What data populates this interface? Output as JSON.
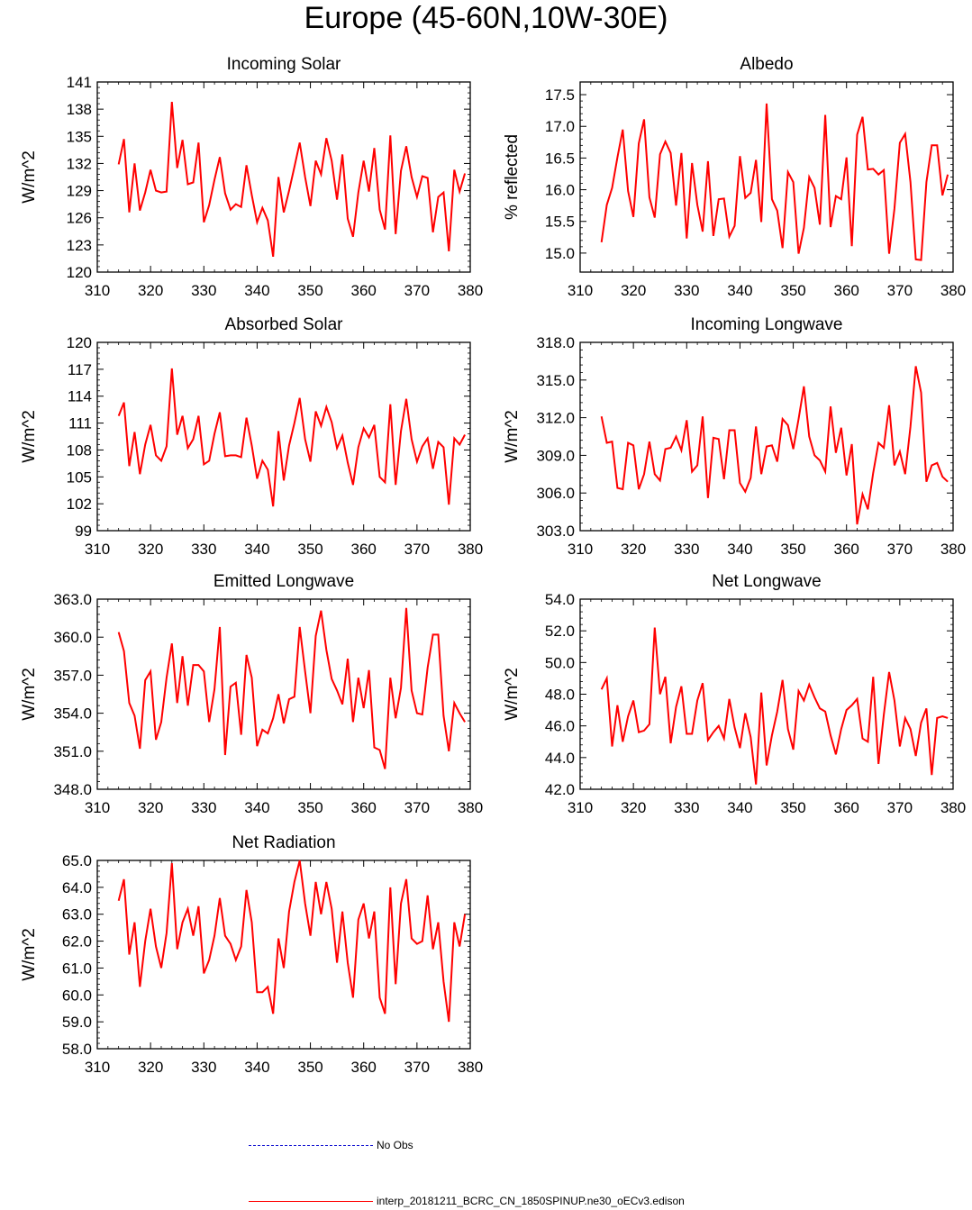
{
  "title": "Europe (45-60N,10W-30E)",
  "colors": {
    "model": "#ff0000",
    "obs": "#0000cc"
  },
  "legend": [
    {
      "label": "No Obs",
      "style": "dashed",
      "color": "#0000cc"
    },
    {
      "label": "interp_20181211_BCRC_CN_1850SPINUP.ne30_oECv3.edison",
      "style": "solid",
      "color": "#ff0000"
    }
  ],
  "chart_data": [
    {
      "type": "line",
      "title": "Incoming Solar",
      "ylabel": "W/m^2",
      "xlim": [
        310,
        380
      ],
      "ylim": [
        120,
        141
      ],
      "xticks": [
        310,
        320,
        330,
        340,
        350,
        360,
        370,
        380
      ],
      "yticks": [
        120,
        123,
        126,
        129,
        132,
        135,
        138,
        141
      ],
      "ytick_labels": [
        "120",
        "123",
        "126",
        "129",
        "132",
        "135",
        "138",
        "141"
      ],
      "x_start": 314,
      "series": [
        {
          "values": [
            131.9,
            134.7,
            126.6,
            132.0,
            126.8,
            128.8,
            131.3,
            129.0,
            128.8,
            128.9,
            138.8,
            131.5,
            134.6,
            129.7,
            129.9,
            134.3,
            125.5,
            127.4,
            130.2,
            132.7,
            128.7,
            126.9,
            127.5,
            127.2,
            131.8,
            128.5,
            125.5,
            127.1,
            125.7,
            121.7,
            130.5,
            126.6,
            129.0,
            131.6,
            134.3,
            130.5,
            127.3,
            132.3,
            130.8,
            134.8,
            132.3,
            128.0,
            133.0,
            125.9,
            123.9,
            128.8,
            132.3,
            128.9,
            133.7,
            126.9,
            124.7,
            135.1,
            124.2,
            131.2,
            133.9,
            130.5,
            128.3,
            130.6,
            130.4,
            124.4,
            128.3,
            128.8,
            122.3,
            131.3,
            128.9,
            130.9
          ]
        }
      ]
    },
    {
      "type": "line",
      "title": "Albedo",
      "ylabel": "% reflected",
      "xlim": [
        310,
        380
      ],
      "ylim": [
        14.7,
        17.7
      ],
      "xticks": [
        310,
        320,
        330,
        340,
        350,
        360,
        370,
        380
      ],
      "yticks": [
        15.0,
        15.5,
        16.0,
        16.5,
        17.0,
        17.5
      ],
      "ytick_labels": [
        "15.0",
        "15.5",
        "16.0",
        "16.5",
        "17.0",
        "17.5"
      ],
      "x_start": 314,
      "series": [
        {
          "values": [
            15.17,
            15.76,
            16.03,
            16.51,
            16.95,
            15.98,
            15.57,
            16.73,
            17.11,
            15.88,
            15.56,
            16.56,
            16.76,
            16.58,
            15.75,
            16.58,
            15.23,
            16.42,
            15.76,
            15.34,
            16.45,
            15.27,
            15.85,
            15.86,
            15.26,
            15.43,
            16.53,
            15.87,
            15.95,
            16.47,
            15.49,
            17.36,
            15.85,
            15.67,
            15.08,
            16.28,
            16.12,
            14.99,
            15.4,
            16.2,
            16.03,
            15.45,
            17.18,
            15.41,
            15.9,
            15.85,
            16.51,
            15.11,
            16.87,
            17.15,
            16.32,
            16.33,
            16.24,
            16.31,
            14.99,
            15.7,
            16.74,
            16.88,
            16.12,
            14.9,
            14.89,
            16.12,
            16.7,
            16.7,
            15.91,
            16.24
          ]
        }
      ]
    },
    {
      "type": "line",
      "title": "Absorbed Solar",
      "ylabel": "W/m^2",
      "xlim": [
        310,
        380
      ],
      "ylim": [
        99,
        120
      ],
      "xticks": [
        310,
        320,
        330,
        340,
        350,
        360,
        370,
        380
      ],
      "yticks": [
        99,
        102,
        105,
        108,
        111,
        114,
        117,
        120
      ],
      "ytick_labels": [
        "99",
        "102",
        "105",
        "108",
        "111",
        "114",
        "117",
        "120"
      ],
      "x_start": 314,
      "series": [
        {
          "values": [
            111.8,
            113.3,
            106.2,
            110.0,
            105.3,
            108.6,
            110.8,
            107.4,
            106.8,
            108.4,
            117.1,
            109.7,
            111.8,
            108.2,
            109.2,
            111.8,
            106.4,
            106.8,
            109.8,
            112.2,
            107.3,
            107.4,
            107.4,
            107.2,
            111.6,
            108.5,
            104.8,
            106.8,
            105.8,
            101.7,
            110.1,
            104.6,
            108.5,
            111.0,
            113.8,
            109.2,
            106.7,
            112.3,
            110.7,
            112.8,
            111.1,
            108.2,
            109.6,
            106.6,
            104.1,
            108.3,
            110.4,
            109.4,
            110.8,
            105.0,
            104.4,
            113.1,
            104.1,
            110.1,
            113.7,
            109.2,
            106.7,
            108.4,
            109.3,
            105.9,
            108.9,
            108.3,
            101.9,
            109.3,
            108.6,
            109.7
          ]
        }
      ]
    },
    {
      "type": "line",
      "title": "Incoming Longwave",
      "ylabel": "W/m^2",
      "xlim": [
        310,
        380
      ],
      "ylim": [
        303,
        318
      ],
      "xticks": [
        310,
        320,
        330,
        340,
        350,
        360,
        370,
        380
      ],
      "yticks": [
        303,
        306,
        309,
        312,
        315,
        318
      ],
      "ytick_labels": [
        "303.0",
        "306.0",
        "309.0",
        "312.0",
        "315.0",
        "318.0"
      ],
      "x_start": 314,
      "series": [
        {
          "values": [
            312.1,
            310.0,
            310.1,
            306.4,
            306.3,
            310.0,
            309.8,
            306.3,
            307.5,
            310.1,
            307.5,
            307.0,
            309.5,
            309.6,
            310.5,
            309.4,
            311.8,
            307.7,
            308.2,
            312.1,
            305.6,
            310.4,
            310.3,
            307.1,
            311.0,
            311.0,
            306.8,
            306.1,
            307.2,
            311.3,
            307.5,
            309.7,
            309.8,
            308.5,
            311.9,
            311.4,
            309.5,
            311.9,
            314.5,
            310.5,
            309.0,
            308.6,
            307.7,
            312.9,
            309.2,
            311.2,
            307.4,
            309.9,
            303.5,
            305.9,
            304.7,
            307.6,
            310.0,
            309.6,
            313.0,
            308.2,
            309.3,
            307.5,
            311.3,
            316.1,
            314.0,
            306.9,
            308.2,
            308.4,
            307.3,
            306.9
          ]
        }
      ]
    },
    {
      "type": "line",
      "title": "Emitted Longwave",
      "ylabel": "W/m^2",
      "xlim": [
        310,
        380
      ],
      "ylim": [
        348,
        363
      ],
      "xticks": [
        310,
        320,
        330,
        340,
        350,
        360,
        370,
        380
      ],
      "yticks": [
        348,
        351,
        354,
        357,
        360,
        363
      ],
      "ytick_labels": [
        "348.0",
        "351.0",
        "354.0",
        "357.0",
        "360.0",
        "363.0"
      ],
      "x_start": 314,
      "series": [
        {
          "values": [
            360.4,
            358.9,
            354.8,
            353.8,
            351.2,
            356.6,
            357.3,
            351.9,
            353.3,
            356.8,
            359.5,
            354.8,
            358.5,
            354.6,
            357.8,
            357.8,
            357.3,
            353.3,
            355.9,
            360.8,
            350.7,
            356.1,
            356.4,
            352.3,
            358.6,
            356.8,
            351.4,
            352.7,
            352.4,
            353.6,
            355.5,
            353.2,
            355.1,
            355.3,
            360.8,
            357.3,
            354.0,
            360.1,
            362.1,
            359.0,
            356.7,
            355.8,
            354.7,
            358.3,
            353.3,
            356.8,
            354.4,
            357.4,
            351.3,
            351.1,
            349.6,
            356.8,
            353.6,
            356.0,
            362.3,
            355.8,
            354.0,
            353.9,
            357.6,
            360.2,
            360.2,
            353.8,
            351.0,
            354.8,
            354.0,
            353.3
          ]
        }
      ]
    },
    {
      "type": "line",
      "title": "Net Longwave",
      "ylabel": "W/m^2",
      "xlim": [
        310,
        380
      ],
      "ylim": [
        42,
        54
      ],
      "xticks": [
        310,
        320,
        330,
        340,
        350,
        360,
        370,
        380
      ],
      "yticks": [
        42,
        44,
        46,
        48,
        50,
        52,
        54
      ],
      "ytick_labels": [
        "42.0",
        "44.0",
        "46.0",
        "48.0",
        "50.0",
        "52.0",
        "54.0"
      ],
      "x_start": 314,
      "series": [
        {
          "values": [
            48.3,
            49.0,
            44.7,
            47.3,
            45.0,
            46.6,
            47.6,
            45.6,
            45.7,
            46.1,
            52.2,
            48.0,
            49.1,
            44.9,
            47.2,
            48.5,
            45.5,
            45.5,
            47.6,
            48.7,
            45.1,
            45.6,
            46.0,
            45.2,
            47.7,
            45.9,
            44.6,
            46.8,
            45.3,
            42.3,
            48.1,
            43.5,
            45.4,
            46.9,
            48.9,
            45.8,
            44.5,
            48.2,
            47.6,
            48.6,
            47.8,
            47.1,
            46.9,
            45.4,
            44.2,
            45.8,
            47.0,
            47.3,
            47.7,
            45.2,
            45.0,
            49.1,
            43.6,
            46.7,
            49.4,
            47.6,
            44.7,
            46.5,
            45.8,
            44.1,
            46.2,
            47.1,
            42.9,
            46.5,
            46.6,
            46.5
          ]
        }
      ]
    },
    {
      "type": "line",
      "title": "Net Radiation",
      "ylabel": "W/m^2",
      "xlim": [
        310,
        380
      ],
      "ylim": [
        58,
        65
      ],
      "xticks": [
        310,
        320,
        330,
        340,
        350,
        360,
        370,
        380
      ],
      "yticks": [
        58,
        59,
        60,
        61,
        62,
        63,
        64,
        65
      ],
      "ytick_labels": [
        "58.0",
        "59.0",
        "60.0",
        "61.0",
        "62.0",
        "63.0",
        "64.0",
        "65.0"
      ],
      "x_start": 314,
      "series": [
        {
          "values": [
            63.5,
            64.3,
            61.5,
            62.7,
            60.3,
            62.0,
            63.2,
            61.8,
            61.0,
            62.3,
            64.9,
            61.7,
            62.7,
            63.2,
            62.2,
            63.3,
            60.8,
            61.3,
            62.2,
            63.6,
            62.2,
            61.9,
            61.3,
            61.8,
            63.9,
            62.7,
            60.1,
            60.1,
            60.3,
            59.3,
            62.1,
            61.0,
            63.1,
            64.2,
            65.0,
            63.4,
            62.2,
            64.2,
            63.0,
            64.2,
            63.2,
            61.2,
            63.1,
            61.2,
            59.9,
            62.8,
            63.4,
            62.1,
            63.1,
            59.9,
            59.3,
            64.0,
            60.4,
            63.4,
            64.3,
            62.1,
            61.9,
            62.0,
            63.7,
            61.7,
            62.7,
            60.5,
            59.0,
            62.7,
            61.8,
            63.0
          ]
        }
      ]
    }
  ]
}
